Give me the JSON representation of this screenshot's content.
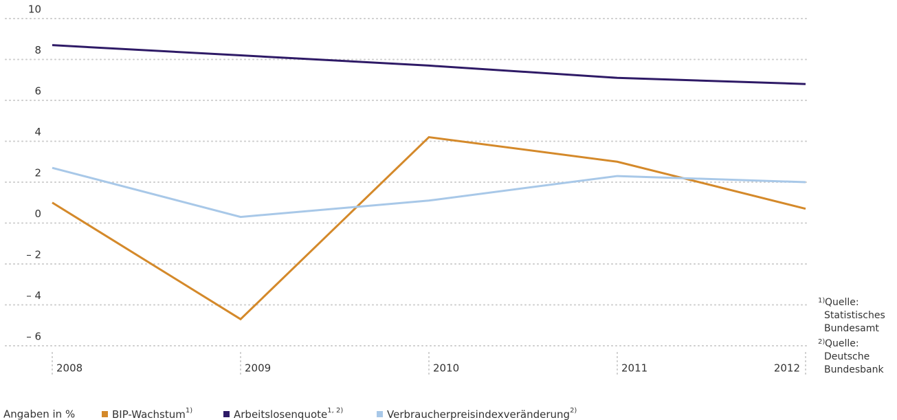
{
  "chart_data": {
    "type": "line",
    "categories": [
      "2008",
      "2009",
      "2010",
      "2011",
      "2012"
    ],
    "series": [
      {
        "name": "BIP-Wachstum",
        "footnote": "1)",
        "color": "#d4892a",
        "values": [
          1.0,
          -4.7,
          4.2,
          3.0,
          0.7
        ]
      },
      {
        "name": "Arbeitslosenquote",
        "footnote": "1, 2)",
        "color": "#2e1a66",
        "values": [
          8.7,
          8.2,
          7.7,
          7.1,
          6.8
        ]
      },
      {
        "name": "Verbraucherpreisindexveränderung",
        "footnote": "2)",
        "color": "#a8c8e8",
        "values": [
          2.7,
          0.3,
          1.1,
          2.3,
          2.0
        ]
      }
    ],
    "ylim": [
      -6,
      10
    ],
    "yticks": [
      {
        "value": -6,
        "label": "– 6"
      },
      {
        "value": -4,
        "label": "– 4"
      },
      {
        "value": -2,
        "label": "– 2"
      },
      0,
      2,
      4,
      6,
      8,
      10
    ],
    "grid": true,
    "unit_note": "Angaben in %",
    "sources": [
      {
        "marker": "1)",
        "lines": [
          "Quelle:",
          "Statistisches",
          "Bundesamt"
        ]
      },
      {
        "marker": "2)",
        "lines": [
          "Quelle:",
          "Deutsche",
          "Bundesbank"
        ]
      }
    ]
  }
}
